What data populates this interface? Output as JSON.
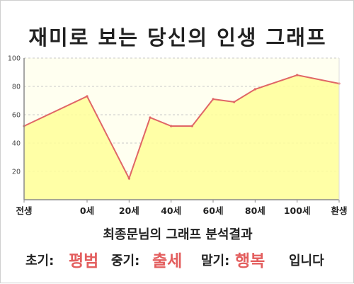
{
  "title": "재미로 보는 당신의 인생 그래프",
  "summary": {
    "heading": "최종문님의 그래프 분석결과",
    "early_label": "초기:",
    "early_value": "평범",
    "middle_label": "중기:",
    "middle_value": "출세",
    "late_label": "말기:",
    "late_value": "행복",
    "ending": "입니다"
  },
  "colors": {
    "line": "#e06666",
    "fill": "#ffff99",
    "plot_background": "#fffff0",
    "grid": "#c8c8c8",
    "accent_text": "#e35e5e"
  },
  "chart_data": {
    "type": "area",
    "x_tick_labels": [
      "전생",
      "0세",
      "20세",
      "40세",
      "60세",
      "80세",
      "100세",
      "환생"
    ],
    "y_tick_labels": [
      "20",
      "40",
      "60",
      "80",
      "100"
    ],
    "ylim": [
      0,
      100
    ],
    "grid": true,
    "series": [
      {
        "points": [
          {
            "x": -30,
            "y": 52
          },
          {
            "x": 0,
            "y": 73
          },
          {
            "x": 20,
            "y": 15
          },
          {
            "x": 30,
            "y": 58
          },
          {
            "x": 40,
            "y": 52
          },
          {
            "x": 50,
            "y": 52
          },
          {
            "x": 60,
            "y": 71
          },
          {
            "x": 70,
            "y": 69
          },
          {
            "x": 80,
            "y": 78
          },
          {
            "x": 100,
            "y": 88
          },
          {
            "x": 120,
            "y": 82
          }
        ]
      }
    ]
  }
}
